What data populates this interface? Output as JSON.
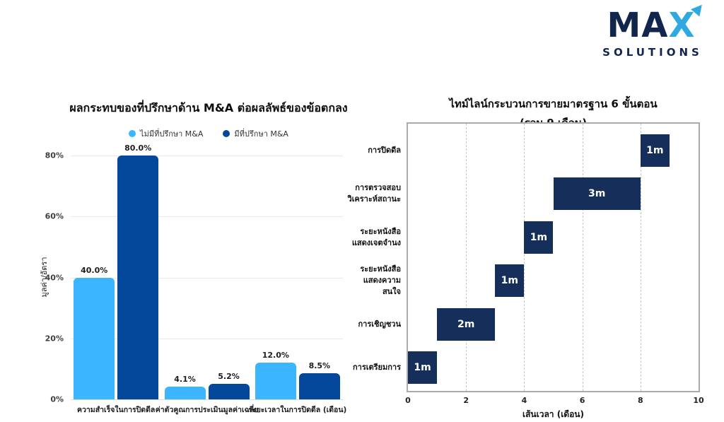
{
  "logo": {
    "text_ma": "MA",
    "text_x": "X",
    "text_sub": "SOLUTIONS",
    "navy": "#12264D",
    "blue": "#2EA9E1"
  },
  "colors": {
    "light_blue": "#3BB5FD",
    "bright_navy": "#03489B",
    "dark_navy": "#152F5A",
    "grid_gray": "#e9e9e9",
    "border_gray": "#ababab"
  },
  "chart_data": [
    {
      "type": "bar",
      "title": "ผลกระทบของที่ปรึกษาด้าน M&A ต่อผลลัพธ์ของข้อตกลง",
      "ylabel": "มูลค่า/อัตรา",
      "ylim": [
        0,
        80
      ],
      "yticks": [
        0,
        20,
        40,
        60,
        80
      ],
      "ytick_suffix": "%",
      "grid": "horizontal",
      "legend_position": "top",
      "categories": [
        "ความสำเร็จในการปิดดีล",
        "ค่าตัวคูณการประเมินมูลค่าเฉลี่ย",
        "ระยะเวลาในการปิดดีล (เดือน)"
      ],
      "series": [
        {
          "name": "ไม่มีที่ปรึกษา M&A",
          "color": "#3BB5FD",
          "values": [
            40.0,
            4.1,
            12.0
          ],
          "labels": [
            "40.0%",
            "4.1%",
            "12.0%"
          ]
        },
        {
          "name": "มีที่ปรึกษา M&A",
          "color": "#03489B",
          "values": [
            80.0,
            5.2,
            8.5
          ],
          "labels": [
            "80.0%",
            "5.2%",
            "8.5%"
          ]
        }
      ]
    },
    {
      "type": "gantt",
      "title": "ไทม์ไลน์กระบวนการขายมาตรฐาน 6 ขั้นตอน",
      "subtitle": "(รวม 9 เดือน)",
      "xlabel": "เส้นเวลา (เดือน)",
      "xlim": [
        0,
        10
      ],
      "xticks": [
        0,
        2,
        4,
        6,
        8,
        10
      ],
      "grid": "vertical-dashed",
      "bar_color": "#152F5A",
      "tasks": [
        {
          "label_lines": [
            "การปิดดีล"
          ],
          "start": 8,
          "duration": 1,
          "bar_label": "1m"
        },
        {
          "label_lines": [
            "การตรวจสอบ",
            "วิเคราะห์สถานะ"
          ],
          "start": 5,
          "duration": 3,
          "bar_label": "3m"
        },
        {
          "label_lines": [
            "ระยะหนังสือ",
            "แสดงเจตจำนง"
          ],
          "start": 4,
          "duration": 1,
          "bar_label": "1m"
        },
        {
          "label_lines": [
            "ระยะหนังสือ",
            "แสดงความสนใจ"
          ],
          "start": 3,
          "duration": 1,
          "bar_label": "1m"
        },
        {
          "label_lines": [
            "การเชิญชวน"
          ],
          "start": 1,
          "duration": 2,
          "bar_label": "2m"
        },
        {
          "label_lines": [
            "การเตรียมการ"
          ],
          "start": 0,
          "duration": 1,
          "bar_label": "1m"
        }
      ]
    }
  ]
}
